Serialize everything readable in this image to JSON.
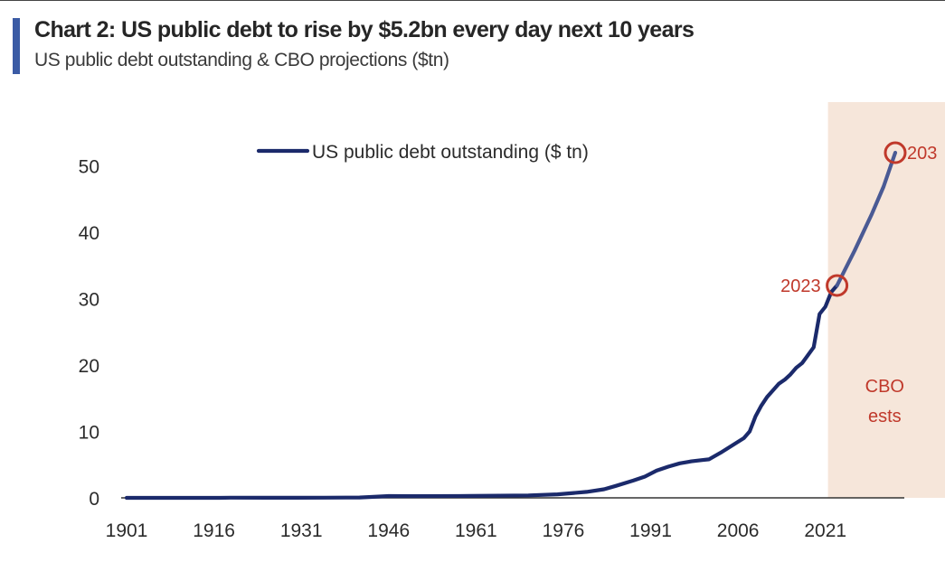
{
  "header": {
    "title": "Chart 2: US public debt to rise by $5.2bn every day next 10 years",
    "subtitle": "US public debt outstanding & CBO projections ($tn)"
  },
  "colors": {
    "accent": "#3b5ba5",
    "line": "#1b2a6b",
    "highlight_red": "#c0392b",
    "shade": "#f6e6da",
    "axis": "#333333",
    "text": "#2b2b2b"
  },
  "chart_data": {
    "type": "line",
    "title": "Chart 2: US public debt to rise by $5.2bn every day next 10 years",
    "subtitle": "US public debt outstanding & CBO projections ($tn)",
    "xlabel": "",
    "ylabel": "",
    "xlim": [
      1901,
      2033
    ],
    "ylim": [
      0,
      55
    ],
    "x_ticks": [
      1901,
      1916,
      1931,
      1946,
      1961,
      1976,
      1991,
      2006,
      2021
    ],
    "y_ticks": [
      0,
      10,
      20,
      30,
      40,
      50
    ],
    "grid": false,
    "legend": {
      "position": "top-center",
      "entries": [
        "US public debt outstanding ($ tn)"
      ]
    },
    "series": [
      {
        "name": "US public debt outstanding ($ tn)",
        "x": [
          1901,
          1910,
          1917,
          1919,
          1925,
          1930,
          1935,
          1941,
          1943,
          1946,
          1950,
          1960,
          1970,
          1975,
          1980,
          1983,
          1985,
          1988,
          1990,
          1992,
          1994,
          1996,
          1998,
          2000,
          2001,
          2003,
          2005,
          2007,
          2008,
          2009,
          2010,
          2011,
          2012,
          2013,
          2014,
          2015,
          2016,
          2017,
          2018,
          2019,
          2020,
          2021,
          2022,
          2023
        ],
        "y": [
          0.001,
          0.001,
          0.003,
          0.025,
          0.02,
          0.016,
          0.03,
          0.05,
          0.14,
          0.27,
          0.26,
          0.29,
          0.37,
          0.53,
          0.9,
          1.3,
          1.8,
          2.6,
          3.2,
          4.1,
          4.7,
          5.2,
          5.5,
          5.7,
          5.8,
          6.8,
          7.9,
          9.0,
          10.0,
          12.3,
          13.9,
          15.2,
          16.2,
          17.2,
          17.8,
          18.6,
          19.6,
          20.3,
          21.5,
          22.7,
          27.7,
          28.8,
          31.0,
          32.0
        ]
      },
      {
        "name": "CBO projection",
        "x": [
          2023,
          2026,
          2029,
          2031,
          2033
        ],
        "y": [
          32.0,
          37.2,
          42.8,
          46.9,
          52.0
        ]
      }
    ],
    "shaded_region": {
      "x_start": 2023,
      "x_end": 2033,
      "label_line1": "CBO",
      "label_line2": "ests"
    },
    "annotations": [
      {
        "x": 2023,
        "y": 32.0,
        "label": "2023"
      },
      {
        "x": 2033,
        "y": 52.0,
        "label": "203"
      }
    ]
  }
}
